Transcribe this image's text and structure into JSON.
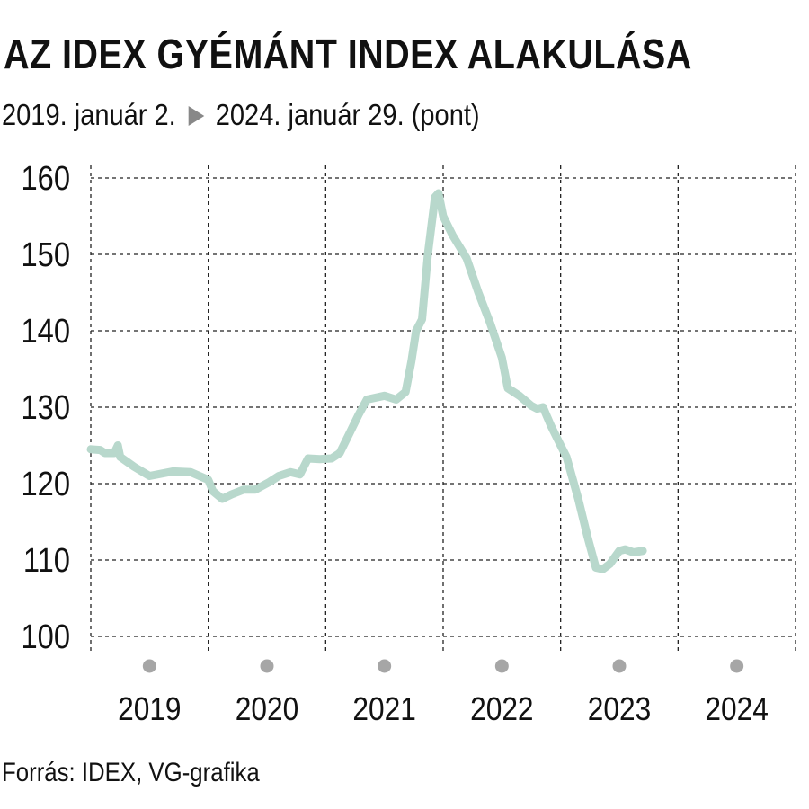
{
  "header": {
    "title": "AZ IDEX GYÉMÁNT INDEX ALAKULÁSA",
    "subtitle_start": "2019. január 2.",
    "subtitle_end": "2024. január 29. (pont)"
  },
  "footer": {
    "source": "Forrás: IDEX, VG-grafika"
  },
  "colors": {
    "line": "#b8d8cc",
    "grid": "#222222",
    "marker": "#a6a6a6",
    "arrow": "#888888"
  },
  "chart_data": {
    "type": "line",
    "title": "AZ IDEX GYÉMÁNT INDEX ALAKULÁSA",
    "subtitle": "2019. január 2. ▶ 2024. január 29. (pont)",
    "xlabel": "",
    "ylabel": "",
    "ylim": [
      100,
      160
    ],
    "xlim": [
      2019.0,
      2025.0
    ],
    "yticks": [
      100,
      110,
      120,
      130,
      140,
      150,
      160
    ],
    "year_labels": [
      "2019",
      "2020",
      "2021",
      "2022",
      "2023",
      "2024"
    ],
    "grid": true,
    "series": [
      {
        "x": [
          2019.0,
          2019.08,
          2019.12,
          2019.2,
          2019.23,
          2019.25,
          2019.37,
          2019.5,
          2019.7,
          2019.85,
          2020.0,
          2020.04,
          2020.12,
          2020.2,
          2020.3,
          2020.4,
          2020.52,
          2020.6,
          2020.7,
          2020.78,
          2020.85,
          2020.95,
          2021.05,
          2021.12,
          2021.2,
          2021.28,
          2021.35,
          2021.5,
          2021.6,
          2021.68,
          2021.73,
          2021.77,
          2021.82,
          2021.87,
          2021.93,
          2021.96,
          2022.0,
          2022.08,
          2022.2,
          2022.3,
          2022.4,
          2022.5,
          2022.55,
          2022.65,
          2022.75,
          2022.8,
          2022.85,
          2022.92,
          2023.0,
          2023.05,
          2023.15,
          2023.23,
          2023.3,
          2023.36,
          2023.42,
          2023.5,
          2023.55,
          2023.62,
          2023.7
        ],
        "y": [
          124.5,
          124.4,
          124.0,
          124.0,
          125.0,
          123.5,
          122.2,
          121.0,
          121.6,
          121.5,
          120.5,
          119.0,
          118.0,
          118.6,
          119.2,
          119.2,
          120.2,
          121.0,
          121.5,
          121.2,
          123.3,
          123.2,
          123.3,
          124.0,
          126.5,
          129.0,
          131.0,
          131.5,
          131.0,
          132.0,
          136.0,
          140.0,
          141.5,
          150.0,
          157.5,
          158.0,
          155.0,
          152.5,
          149.5,
          145.0,
          141.0,
          136.5,
          132.5,
          131.5,
          130.2,
          129.8,
          130.0,
          127.5,
          125.0,
          123.5,
          118.0,
          113.0,
          109.0,
          108.8,
          109.5,
          111.2,
          111.4,
          111.0,
          111.2
        ]
      }
    ]
  }
}
